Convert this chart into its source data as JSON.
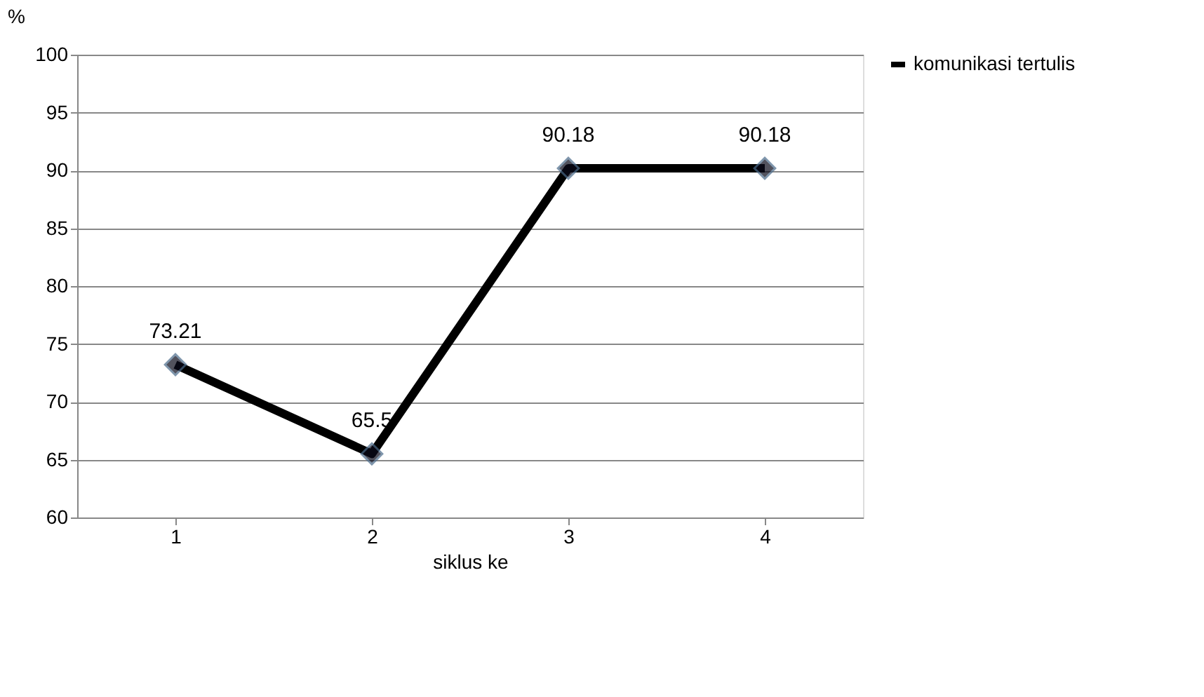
{
  "chart_data": {
    "type": "line",
    "xlabel": "siklus ke",
    "ylabel": "%",
    "categories": [
      "1",
      "2",
      "3",
      "4"
    ],
    "series": [
      {
        "name": "komunikasi tertulis",
        "color": "#000000",
        "values": [
          73.21,
          65.5,
          90.18,
          90.18
        ]
      }
    ],
    "ylim": [
      60,
      100
    ],
    "yticks": [
      60,
      65,
      70,
      75,
      80,
      85,
      90,
      95,
      100
    ],
    "grid": "y",
    "legend": "right",
    "marker": "diamond",
    "line_style": "solid",
    "data_labels": true
  }
}
